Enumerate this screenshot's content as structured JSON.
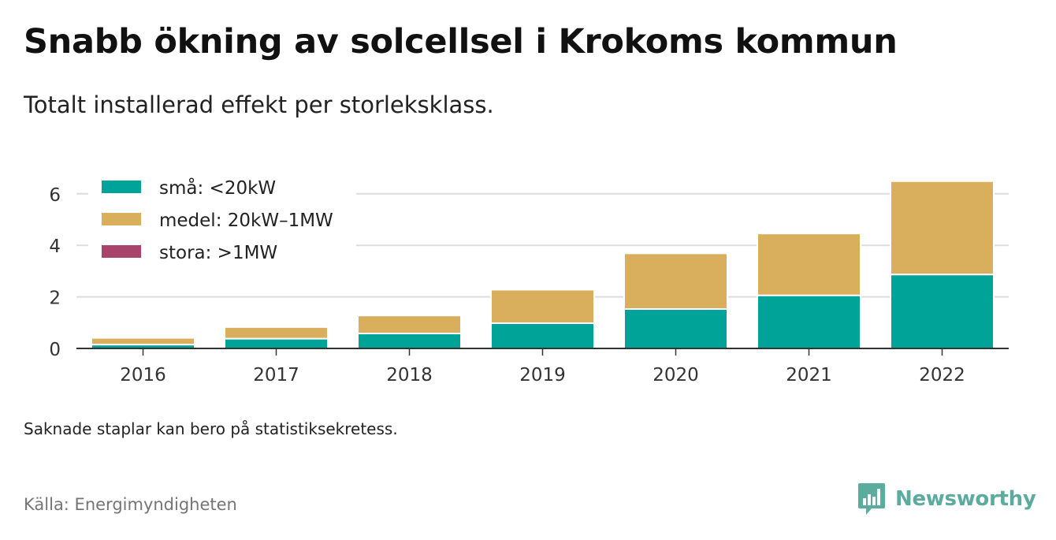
{
  "title": "Snabb ökning av solcellsel i Krokoms kommun",
  "subtitle": "Totalt installerad effekt per storleksklass.",
  "note": "Saknade staplar kan bero på statistiksekretess.",
  "source": "Källa: Energimyndigheten",
  "logo_text": "Newsworthy",
  "colors": {
    "sma": "#00a398",
    "medel": "#d9ae5c",
    "stora": "#a8446b",
    "grid": "#dddddd",
    "axis": "#333333",
    "logo": "#5bab9e"
  },
  "chart_data": {
    "type": "bar",
    "stacked": true,
    "categories": [
      "2016",
      "2017",
      "2018",
      "2019",
      "2020",
      "2021",
      "2022"
    ],
    "series": [
      {
        "name": "små: <20kW",
        "color": "#00a398",
        "values": [
          0.15,
          0.38,
          0.58,
          0.98,
          1.53,
          2.06,
          2.87
        ]
      },
      {
        "name": "medel: 20kW–1MW",
        "color": "#d9ae5c",
        "values": [
          0.26,
          0.45,
          0.7,
          1.3,
          2.16,
          2.4,
          3.62
        ]
      },
      {
        "name": "stora: >1MW",
        "color": "#a8446b",
        "values": [
          0,
          0,
          0,
          0,
          0,
          0,
          0
        ]
      }
    ],
    "ylim": [
      0,
      6.5
    ],
    "yticks": [
      0,
      2,
      4,
      6
    ],
    "grid": true,
    "legend": "top-left"
  }
}
